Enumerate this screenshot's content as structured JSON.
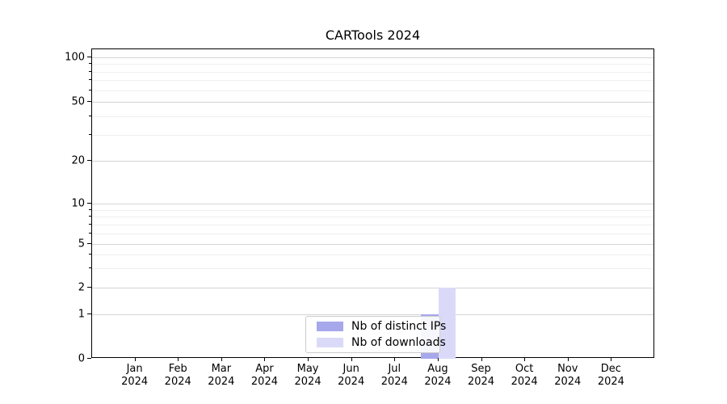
{
  "chart_data": {
    "type": "bar",
    "title": "CARTools 2024",
    "categories": [
      "Jan 2024",
      "Feb 2024",
      "Mar 2024",
      "Apr 2024",
      "May 2024",
      "Jun 2024",
      "Jul 2024",
      "Aug 2024",
      "Sep 2024",
      "Oct 2024",
      "Nov 2024",
      "Dec 2024"
    ],
    "series": [
      {
        "name": "Nb of distinct IPs",
        "color": "#a7a7ec",
        "values": [
          0,
          0,
          0,
          0,
          0,
          0,
          0,
          1,
          0,
          0,
          0,
          0
        ]
      },
      {
        "name": "Nb of downloads",
        "color": "#dadaf8",
        "values": [
          0,
          0,
          0,
          0,
          0,
          0,
          0,
          2,
          0,
          0,
          0,
          0
        ]
      }
    ],
    "xlabel": "",
    "ylabel": "",
    "y_scale": "symlog-1-2-5",
    "ylim": [
      0,
      120
    ],
    "y_ticks": [
      0,
      1,
      2,
      5,
      10,
      20,
      50,
      100
    ],
    "y_minor_ticks": [
      3,
      4,
      6,
      7,
      8,
      9,
      30,
      40,
      60,
      70,
      80,
      90
    ],
    "grid": "horizontal major and minor, on",
    "legend_position": "lower center inside plot"
  },
  "colors": {
    "major_grid": "#d4d4d4",
    "minor_grid": "#efefef",
    "spine": "#000000",
    "background": "#ffffff"
  }
}
